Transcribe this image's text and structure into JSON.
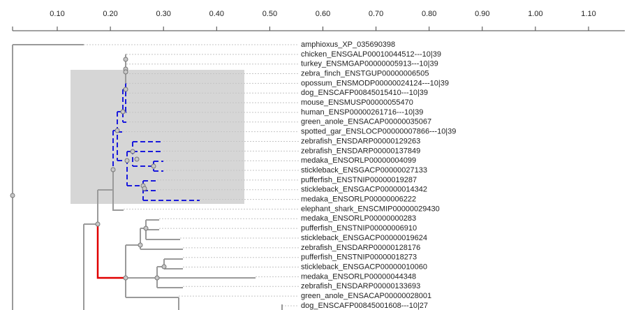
{
  "scale": {
    "ticks": [
      "0.10",
      "0.20",
      "0.30",
      "0.40",
      "0.50",
      "0.60",
      "0.70",
      "0.80",
      "0.90",
      "1.00",
      "1.10"
    ]
  },
  "leaves": [
    "amphioxus_XP_035690398",
    "chicken_ENSGALP00010044512---10|39",
    "turkey_ENSMGAP00000005913---10|39",
    "zebra_finch_ENSTGUP00000006505",
    "opossum_ENSMODP00000024124---10|39",
    "dog_ENSCAFP00845015410---10|39",
    "mouse_ENSMUSP00000055470",
    "human_ENSP00000261716---10|39",
    "green_anole_ENSACAP00000035067",
    "spotted_gar_ENSLOCP00000007866---10|39",
    "zebrafish_ENSDARP00000129263",
    "zebrafish_ENSDARP00000137849",
    "medaka_ENSORLP00000004099",
    "stickleback_ENSGACP00000027133",
    "pufferfish_ENSTNIP00000019287",
    "stickleback_ENSGACP00000014342",
    "medaka_ENSORLP00000006222",
    "elephant_shark_ENSCMIP00000029430",
    "medaka_ENSORLP00000000283",
    "pufferfish_ENSTNIP00000006910",
    "stickleback_ENSGACP00000019624",
    "zebrafish_ENSDARP00000128176",
    "pufferfish_ENSTNIP00000018273",
    "stickleback_ENSGACP00000010060",
    "medaka_ENSORLP00000044348",
    "zebrafish_ENSDARP00000133693",
    "green_anole_ENSACAP00000028001",
    "dog_ENSCAFP00845001608---10|27"
  ]
}
